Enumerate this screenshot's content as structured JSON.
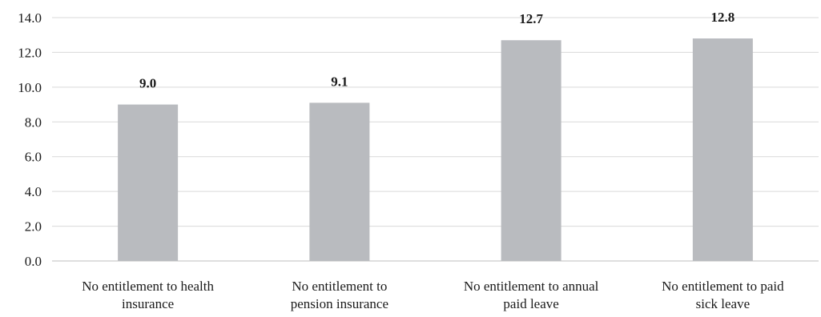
{
  "chart_data": {
    "type": "bar",
    "title": "",
    "xlabel": "",
    "ylabel": "",
    "categories": [
      [
        "No entitlement to health",
        "insurance"
      ],
      [
        "No entitlement to",
        "pension insurance"
      ],
      [
        "No entitlement to annual",
        "paid leave"
      ],
      [
        "No entitlement to paid",
        "sick leave"
      ]
    ],
    "values": [
      9.0,
      9.1,
      12.7,
      12.8
    ],
    "value_labels": [
      "9.0",
      "9.1",
      "12.7",
      "12.8"
    ],
    "ylim": [
      0,
      14
    ],
    "yticks": [
      0,
      2,
      4,
      6,
      8,
      10,
      12,
      14
    ],
    "ytick_labels": [
      "0.0",
      "2.0",
      "4.0",
      "6.0",
      "8.0",
      "10.0",
      "12.0",
      "14.0"
    ],
    "grid": true,
    "legend": "none",
    "bar_color": "#b9bbbf"
  }
}
